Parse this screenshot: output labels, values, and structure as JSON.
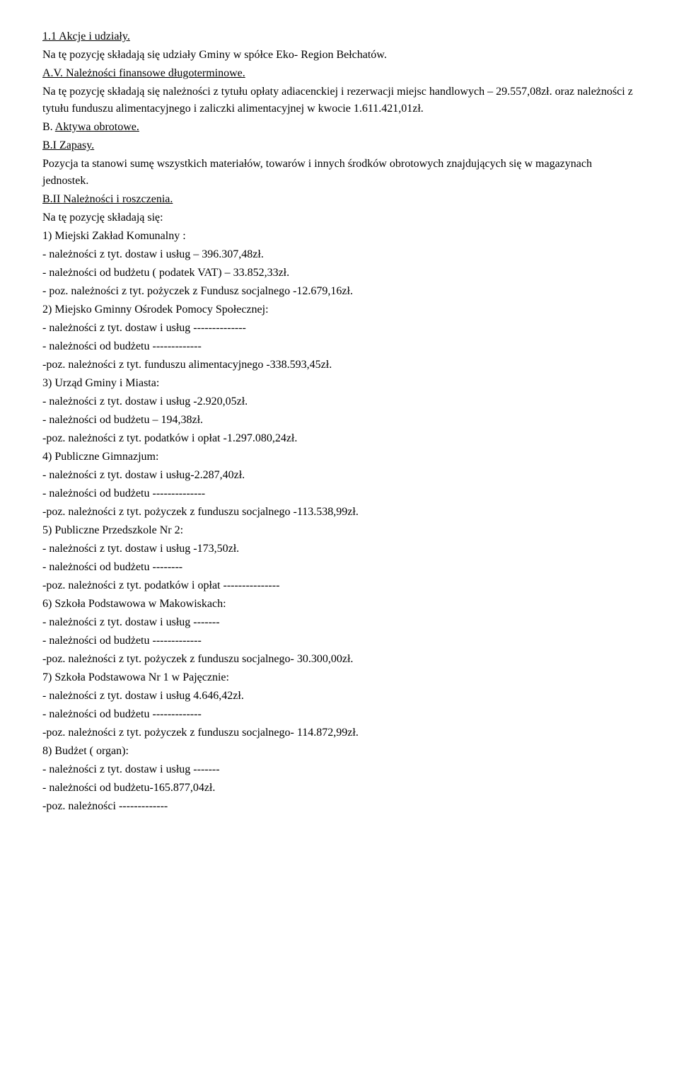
{
  "s1_1": {
    "heading": "1.1 Akcje i udziały.",
    "line1": "Na tę pozycję składają się udziały Gminy w spółce Eko- Region Bełchatów."
  },
  "sAV": {
    "heading": "A.V. Należności finansowe długoterminowe.",
    "line1": "Na tę pozycję składają się należności z tytułu opłaty adiacenckiej i rezerwacji miejsc handlowych – 29.557,08zł. oraz  należności z tytułu funduszu alimentacyjnego i zaliczki alimentacyjnej w kwocie 1.611.421,01zł."
  },
  "sB": {
    "prefix": "B.  ",
    "heading": "Aktywa obrotowe."
  },
  "sBI": {
    "heading": "B.I Zapasy.",
    "line1": "Pozycja ta stanowi sumę wszystkich materiałów, towarów i innych środków obrotowych znajdujących się w magazynach jednostek."
  },
  "sBII": {
    "heading": "B.II Należności i roszczenia.",
    "intro": "Na tę pozycję składają się:",
    "items": [
      "1)   Miejski Zakład Komunalny :",
      "- należności z tyt. dostaw i usług – 396.307,48zł.",
      "- należności od budżetu ( podatek VAT) – 33.852,33zł.",
      "- poz. należności z tyt. pożyczek z Fundusz socjalnego -12.679,16zł.",
      "2) Miejsko Gminny Ośrodek Pomocy Społecznej:",
      "- należności z tyt. dostaw i usług --------------",
      "- należności od budżetu -------------",
      " -poz. należności z tyt. funduszu alimentacyjnego  -338.593,45zł.",
      "3) Urząd Gminy i Miasta:",
      "- należności z tyt. dostaw i usług -2.920,05zł.",
      "- należności od budżetu – 194,38zł.",
      " -poz. należności z tyt. podatków i opłat  -1.297.080,24zł.",
      "4) Publiczne Gimnazjum:",
      "- należności z tyt. dostaw i usług-2.287,40zł.",
      "- należności od budżetu --------------",
      " -poz. należności z tyt. pożyczek z funduszu socjalnego  -113.538,99zł.",
      "5) Publiczne Przedszkole Nr 2:",
      "- należności z tyt. dostaw i usług -173,50zł.",
      "- należności od budżetu --------",
      " -poz. należności z tyt. podatków i opłat ---------------",
      "6) Szkoła Podstawowa w Makowiskach:",
      "- należności z tyt. dostaw i usług -------",
      "- należności od budżetu -------------",
      " -poz. należności z tyt. pożyczek z funduszu  socjalnego- 30.300,00zł.",
      "7) Szkoła Podstawowa Nr 1 w Pajęcznie:",
      "- należności z tyt. dostaw i usług 4.646,42zł.",
      "- należności od budżetu -------------",
      " -poz. należności z tyt. pożyczek z funduszu  socjalnego- 114.872,99zł.",
      "8) Budżet ( organ):",
      "- należności z tyt. dostaw i usług -------",
      "- należności od budżetu-165.877,04zł.",
      " -poz. należności -------------"
    ]
  }
}
